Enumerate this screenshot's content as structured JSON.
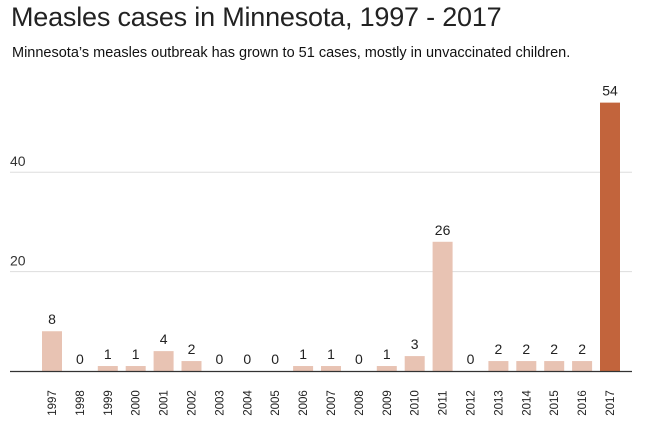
{
  "chart_data": {
    "type": "bar",
    "title": "Measles cases in Minnesota, 1997 - 2017",
    "subtitle": "Minnesota’s measles outbreak has grown to 51 cases, mostly in unvaccinated children.",
    "xlabel": "",
    "ylabel": "",
    "categories": [
      "1997",
      "1998",
      "1999",
      "2000",
      "2001",
      "2002",
      "2003",
      "2004",
      "2005",
      "2006",
      "2007",
      "2008",
      "2009",
      "2010",
      "2011",
      "2012",
      "2013",
      "2014",
      "2015",
      "2016",
      "2017"
    ],
    "values": [
      8,
      0,
      1,
      1,
      4,
      2,
      0,
      0,
      0,
      1,
      1,
      0,
      1,
      3,
      26,
      0,
      2,
      2,
      2,
      2,
      54
    ],
    "yticks": [
      20,
      40
    ],
    "ylim": [
      0,
      54
    ],
    "grid": true,
    "highlight_category": "2017",
    "colors": {
      "bar": "#e8c3b3",
      "highlight": "#c2643c",
      "grid": "#dddddd",
      "axis": "#333333"
    }
  }
}
